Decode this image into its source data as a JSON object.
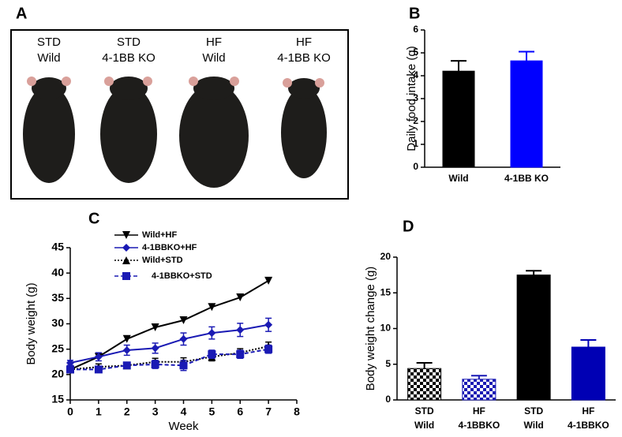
{
  "photo": {
    "panel": "A",
    "labels": [
      [
        "STD",
        "Wild"
      ],
      [
        "STD",
        "4-1BB KO"
      ],
      [
        "HF",
        "Wild"
      ],
      [
        "HF",
        "4-1BB KO"
      ]
    ]
  },
  "chart_data": [
    {
      "type": "bar",
      "panel": "B",
      "ylabel": "Daily food intake (g)",
      "categories": [
        [
          "Wild"
        ],
        [
          "4-1BB KO"
        ]
      ],
      "values": [
        4.2,
        4.65
      ],
      "errors": [
        0.45,
        0.4
      ],
      "colors": [
        "#000000",
        "#0000ff"
      ],
      "patterns": [
        "solid",
        "solid"
      ],
      "ylim": [
        0,
        6
      ],
      "yticks": [
        0,
        1,
        2,
        3,
        4,
        5,
        6
      ]
    },
    {
      "type": "line",
      "panel": "C",
      "xlabel": "Week",
      "ylabel": "Body weight (g)",
      "x": [
        0,
        1,
        2,
        3,
        4,
        5,
        6,
        7
      ],
      "xlim": [
        0,
        8
      ],
      "xticks": [
        0,
        1,
        2,
        3,
        4,
        5,
        6,
        7,
        8
      ],
      "ylim": [
        15,
        45
      ],
      "yticks": [
        15,
        20,
        25,
        30,
        35,
        40,
        45
      ],
      "series": [
        {
          "name": "Wild+HF",
          "color": "#000000",
          "marker": "triangle-down",
          "dash": "solid",
          "values": [
            21,
            23.5,
            27,
            29.3,
            30.7,
            33.3,
            35.2,
            38.5
          ]
        },
        {
          "name": "4-1BBKO+HF",
          "color": "#1a1ab4",
          "marker": "diamond",
          "dash": "solid",
          "values": [
            22.3,
            23.5,
            24.8,
            25.2,
            27,
            28.2,
            28.8,
            29.8
          ],
          "errors": [
            0.5,
            0.8,
            1,
            1,
            1.2,
            1.2,
            1.3,
            1.3
          ]
        },
        {
          "name": "Wild+STD",
          "color": "#000000",
          "marker": "triangle-up",
          "dash": "dotted",
          "values": [
            21,
            21.5,
            21.8,
            22.5,
            22.5,
            23.5,
            24.3,
            25.6
          ],
          "errors": [
            0.5,
            0.6,
            0.5,
            0.7,
            0.8,
            0.8,
            0.8,
            0.8
          ]
        },
        {
          "name": "4-1BBKO+STD",
          "color": "#1a1ab4",
          "marker": "square",
          "dash": "dashed",
          "values": [
            21,
            21,
            21.8,
            22,
            21.8,
            24,
            24,
            25
          ],
          "errors": [
            0.5,
            0.6,
            0.6,
            0.8,
            1,
            0.8,
            0.8,
            0.8
          ]
        }
      ]
    },
    {
      "type": "bar",
      "panel": "D",
      "ylabel": "Body weight change (g)",
      "categories": [
        [
          "STD",
          "Wild"
        ],
        [
          "HF",
          "4-1BBKO"
        ],
        [
          "STD",
          "Wild"
        ],
        [
          "HF",
          "4-1BBKO"
        ]
      ],
      "values": [
        4.4,
        2.9,
        17.5,
        7.4
      ],
      "errors": [
        0.8,
        0.5,
        0.6,
        1.0
      ],
      "colors": [
        "#000000",
        "#1a1ab4",
        "#000000",
        "#0000b4"
      ],
      "patterns": [
        "checker",
        "checker",
        "solid",
        "solid"
      ],
      "ylim": [
        0,
        20
      ],
      "yticks": [
        0,
        5,
        10,
        15,
        20
      ]
    }
  ]
}
